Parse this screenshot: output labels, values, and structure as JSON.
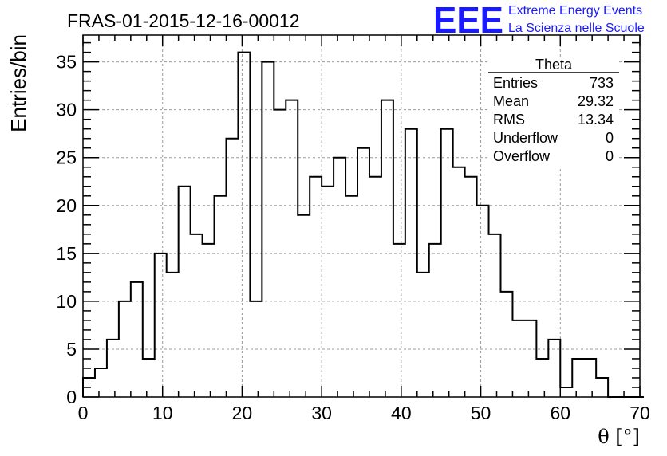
{
  "chart_data": {
    "type": "bar",
    "title": "FRAS-01-2015-12-16-00012",
    "xlabel": "θ [°]",
    "ylabel": "Entries/bin",
    "xlim": [
      0,
      70
    ],
    "ylim": [
      0,
      37.8
    ],
    "x_ticks": [
      0,
      10,
      20,
      30,
      40,
      50,
      60,
      70
    ],
    "y_ticks": [
      0,
      5,
      10,
      15,
      20,
      25,
      30,
      35
    ],
    "grid": true,
    "bin_width": 1.5,
    "bin_edges_start": 0,
    "values": [
      2,
      3,
      6,
      10,
      12,
      4,
      15,
      13,
      22,
      17,
      16,
      21,
      27,
      36,
      10,
      35,
      30,
      31,
      19,
      23,
      22,
      25,
      21,
      26,
      23,
      31,
      16,
      28,
      13,
      16,
      28,
      24,
      23,
      20,
      17,
      11,
      8,
      8,
      4,
      6,
      1,
      4,
      4,
      2,
      0,
      0,
      0
    ],
    "stats_box": {
      "title": "Theta",
      "rows": [
        {
          "label": "Entries",
          "value": "733"
        },
        {
          "label": "Mean",
          "value": "29.32"
        },
        {
          "label": "RMS",
          "value": "13.34"
        },
        {
          "label": "Underflow",
          "value": "0"
        },
        {
          "label": "Overflow",
          "value": "0"
        }
      ]
    }
  },
  "logo": {
    "mark": "EEE",
    "line1": "Extreme Energy Events",
    "line2": "La Scienza nelle Scuole",
    "color": "#1a1aff"
  },
  "colors": {
    "line": "#000000",
    "grid": "#9a9a9a"
  }
}
